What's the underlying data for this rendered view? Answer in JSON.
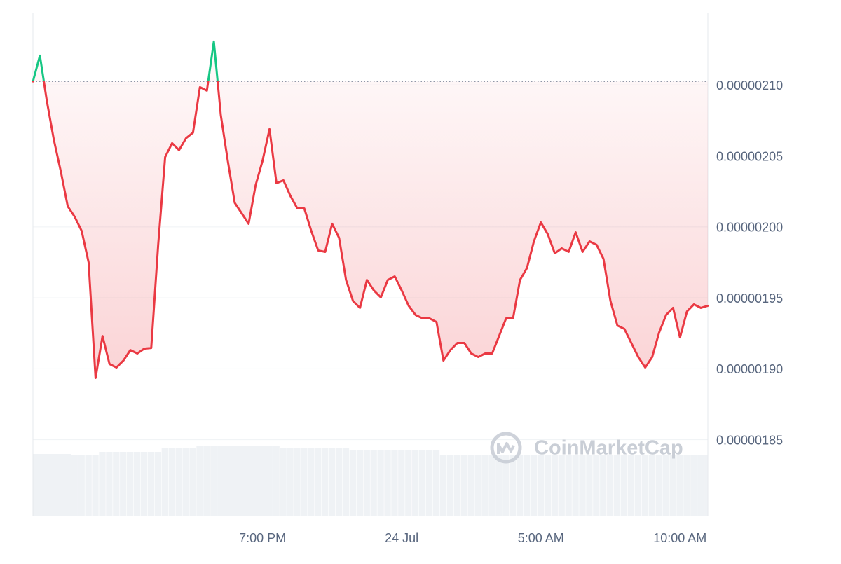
{
  "chart_data": {
    "type": "line",
    "watermark": "CoinMarketCap",
    "color": "#ea3943",
    "up_color": "#16c784",
    "volume_color": "#eff2f5",
    "grid": true,
    "categories": [
      null,
      null,
      null,
      null,
      null,
      null,
      null,
      null,
      null,
      null,
      null,
      null,
      null,
      null,
      null,
      null,
      null,
      null,
      null,
      null,
      null,
      null,
      null,
      null,
      null,
      null,
      null,
      null,
      null,
      null,
      null,
      null,
      null,
      "7:00 PM",
      null,
      null,
      null,
      null,
      null,
      null,
      null,
      null,
      null,
      null,
      null,
      null,
      null,
      null,
      null,
      null,
      null,
      null,
      null,
      "24 Jul",
      null,
      null,
      null,
      null,
      null,
      null,
      null,
      null,
      null,
      null,
      null,
      null,
      null,
      null,
      null,
      null,
      null,
      null,
      null,
      "5:00 AM",
      null,
      null,
      null,
      null,
      null,
      null,
      null,
      null,
      null,
      null,
      null,
      null,
      null,
      null,
      null,
      null,
      null,
      null,
      null,
      "10:00 AM",
      null,
      null,
      null,
      null
    ],
    "values": [
      2.1025e-06,
      2.1207e-06,
      2.0886e-06,
      2.0615e-06,
      2.0392e-06,
      2.0145e-06,
      2.0071e-06,
      1.9972e-06,
      1.975e-06,
      1.8935e-06,
      1.9231e-06,
      1.9034e-06,
      1.9009e-06,
      1.9058e-06,
      1.9132e-06,
      1.9108e-06,
      1.9142e-06,
      1.9147e-06,
      1.9874e-06,
      2.0492e-06,
      2.059e-06,
      2.0541e-06,
      2.0625e-06,
      2.0664e-06,
      2.0985e-06,
      2.096e-06,
      2.1306e-06,
      2.0788e-06,
      2.0466e-06,
      2.017e-06,
      2.0096e-06,
      2.0022e-06,
      2.0293e-06,
      2.0466e-06,
      2.0689e-06,
      2.0308e-06,
      2.0328e-06,
      2.0219e-06,
      2.013e-06,
      2.013e-06,
      1.9972e-06,
      1.9834e-06,
      1.9824e-06,
      2.0022e-06,
      1.9923e-06,
      1.9626e-06,
      1.9478e-06,
      1.9429e-06,
      1.9626e-06,
      1.9552e-06,
      1.9503e-06,
      1.9626e-06,
      1.9651e-06,
      1.9552e-06,
      1.9444e-06,
      1.9379e-06,
      1.9355e-06,
      1.9355e-06,
      1.933e-06,
      1.9058e-06,
      1.9132e-06,
      1.9182e-06,
      1.9182e-06,
      1.9108e-06,
      1.9083e-06,
      1.9108e-06,
      1.9108e-06,
      1.9231e-06,
      1.9355e-06,
      1.9355e-06,
      1.9626e-06,
      1.971e-06,
      1.9898e-06,
      2.0032e-06,
      1.9948e-06,
      1.9814e-06,
      1.9849e-06,
      1.9824e-06,
      1.9962e-06,
      1.9824e-06,
      1.9898e-06,
      1.9874e-06,
      1.9775e-06,
      1.9478e-06,
      1.9305e-06,
      1.9281e-06,
      1.9182e-06,
      1.9083e-06,
      1.9009e-06,
      1.9083e-06,
      1.9256e-06,
      1.9379e-06,
      1.9429e-06,
      1.9221e-06,
      1.9404e-06,
      1.9454e-06,
      1.9429e-06,
      1.9444e-06
    ],
    "volume": [
      89,
      89,
      89,
      89,
      89,
      89,
      88,
      88,
      88,
      88,
      92,
      92,
      92,
      92,
      92,
      92,
      92,
      92,
      92,
      98,
      98,
      98,
      98,
      98,
      100,
      100,
      100,
      100,
      100,
      100,
      100,
      100,
      100,
      100,
      100,
      100,
      98,
      98,
      98,
      98,
      98,
      98,
      98,
      98,
      98,
      98,
      95,
      95,
      95,
      95,
      95,
      95,
      95,
      95,
      95,
      95,
      95,
      95,
      95,
      87,
      87,
      87,
      87,
      87,
      87,
      87,
      87,
      87,
      87,
      87,
      87,
      87,
      87,
      87,
      87,
      87,
      87,
      87,
      87,
      87,
      87,
      87,
      87,
      87,
      87,
      87,
      87,
      87,
      87,
      87,
      87,
      87,
      87,
      87,
      87,
      87,
      87,
      87
    ],
    "volume_ylim": [
      0,
      100
    ],
    "ylim": [
      1.796e-06,
      2.151e-06
    ],
    "yticks": [
      {
        "value": 1.85e-06,
        "label": "0.00000185"
      },
      {
        "value": 1.9e-06,
        "label": "0.00000190"
      },
      {
        "value": 1.95e-06,
        "label": "0.00000195"
      },
      {
        "value": 2e-06,
        "label": "0.00000200"
      },
      {
        "value": 2.05e-06,
        "label": "0.00000205"
      },
      {
        "value": 2.1e-06,
        "label": "0.00000210"
      }
    ]
  }
}
